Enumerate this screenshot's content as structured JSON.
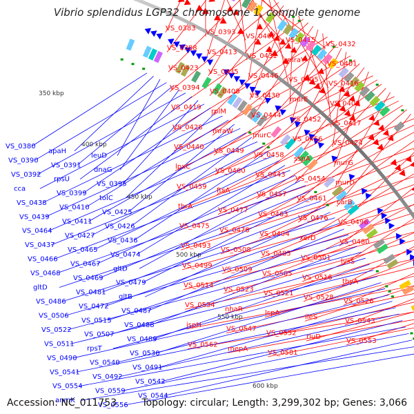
{
  "title": "Vibrio splendidus LGP32 chromosome 1, complete genome",
  "footer": {
    "accession": "Accession: NC_011753",
    "stats": "Topology: circular; Length: 3,299,302 bp; Genes: 3,066"
  },
  "ticks": [
    "350 kbp",
    "400 kbp",
    "450 kbp",
    "500 kbp",
    "550 kbp",
    "600 kbp"
  ],
  "colors": {
    "forward": "#ff0000",
    "reverse": "#0000ff",
    "backbone": "#888888",
    "tick_mark": "#009900"
  },
  "labels_red": [
    "VS_0383",
    "VS_0393",
    "VS_0402",
    "VS_0415",
    "VS_0432",
    "VS_0388",
    "VS_0413",
    "VS_0431",
    "mraY",
    "VS_0401",
    "VS_0423",
    "VS_0435",
    "VS_0446",
    "VS_0405",
    "VS_0416",
    "VS_0394",
    "VS_0408",
    "VS_0430",
    "murE",
    "VS_0409",
    "VS_0419",
    "rplM",
    "VS_0444",
    "VS_0452",
    "VS_0417",
    "VS_0428",
    "mraW",
    "murC",
    "VS_0456",
    "VS_0424",
    "VS_0440",
    "VS_0449",
    "VS_0458",
    "sspA",
    "murG",
    "lpxC",
    "VS_0460",
    "VS_0443",
    "VS_0454",
    "murD",
    "VS_0459",
    "ftsA",
    "VS_0457",
    "VS_0461",
    "carB",
    "thrA",
    "VS_0477",
    "VS_0463",
    "VS_0476",
    "VS_0496",
    "VS_0475",
    "VS_0478",
    "VS_0494",
    "xerD",
    "VS_0480",
    "VS_0493",
    "VS_0508",
    "VS_0485",
    "VS_0501",
    "lysS",
    "VS_0499",
    "VS_0509",
    "VS_0505",
    "VS_0516",
    "thyA",
    "VS_0514",
    "VS_0523",
    "VS_0521",
    "VS_0528",
    "VS_0526",
    "VS_0534",
    "nhaR",
    "lspA",
    "ileS",
    "VS_0543",
    "ispH",
    "VS_0547",
    "VS_0552",
    "rluD",
    "VS_0553",
    "VS_0562",
    "mepA",
    "VS_0581"
  ],
  "labels_blue": [
    "VS_0380",
    "apaH",
    "leuD",
    "VS_0390",
    "VS_0391",
    "dnaG",
    "VS_0392",
    "rpsU",
    "VS_0395",
    "cca",
    "VS_0399",
    "tolC",
    "VS_0438",
    "VS_0410",
    "VS_0425",
    "VS_0439",
    "VS_0411",
    "VS_0426",
    "VS_0464",
    "VS_0427",
    "VS_0436",
    "VS_0437",
    "VS_0465",
    "VS_0474",
    "VS_0466",
    "VS_0467",
    "gltD",
    "VS_0468",
    "VS_0469",
    "VS_0479",
    "gltD",
    "VS_0481",
    "gltB",
    "VS_0486",
    "VS_0472",
    "VS_0487",
    "VS_0506",
    "VS_0515",
    "VS_0488",
    "VS_0522",
    "VS_0507",
    "VS_0489",
    "VS_0511",
    "rpsT",
    "VS_0530",
    "VS_0490",
    "VS_0540",
    "VS_0491",
    "VS_0541",
    "VS_0492",
    "VS_0542",
    "VS_0554",
    "VS_0559",
    "VS_0544",
    "anmK",
    "VS_0556"
  ]
}
